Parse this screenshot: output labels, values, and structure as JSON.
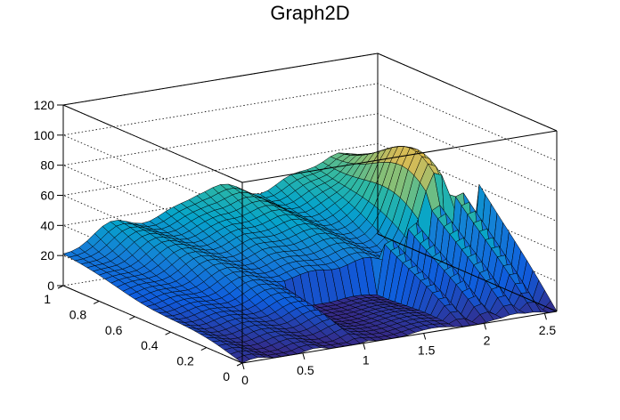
{
  "chart_data": {
    "type": "surface",
    "title": "Graph2D",
    "xlabel": "",
    "ylabel": "",
    "zlabel": "",
    "grid": true,
    "xlim": [
      0,
      2.6
    ],
    "ylim": [
      0,
      1
    ],
    "zlim": [
      0,
      120
    ],
    "x_ticks": [
      "0",
      "0.5",
      "1",
      "1.5",
      "2",
      "2.5"
    ],
    "y_ticks": [
      "0",
      "0.2",
      "0.4",
      "0.6",
      "0.8",
      "1"
    ],
    "z_ticks": [
      "0",
      "20",
      "40",
      "60",
      "80",
      "100",
      "120"
    ],
    "colormap": [
      "#352a87",
      "#0f5cdd",
      "#1481d6",
      "#06a4ca",
      "#2eb7a4",
      "#87bf77",
      "#d1bb59",
      "#fec832",
      "#f9fb0e"
    ],
    "surface_features": {
      "z_at_x0_y1": 18,
      "z_at_x0_y0": 0,
      "ridge_y1_plateau": 45,
      "peak": {
        "x": 2.3,
        "y": 0.55,
        "z": 100
      },
      "low_region_x_min": 1.0,
      "low_region_y_max": 0.45
    }
  }
}
